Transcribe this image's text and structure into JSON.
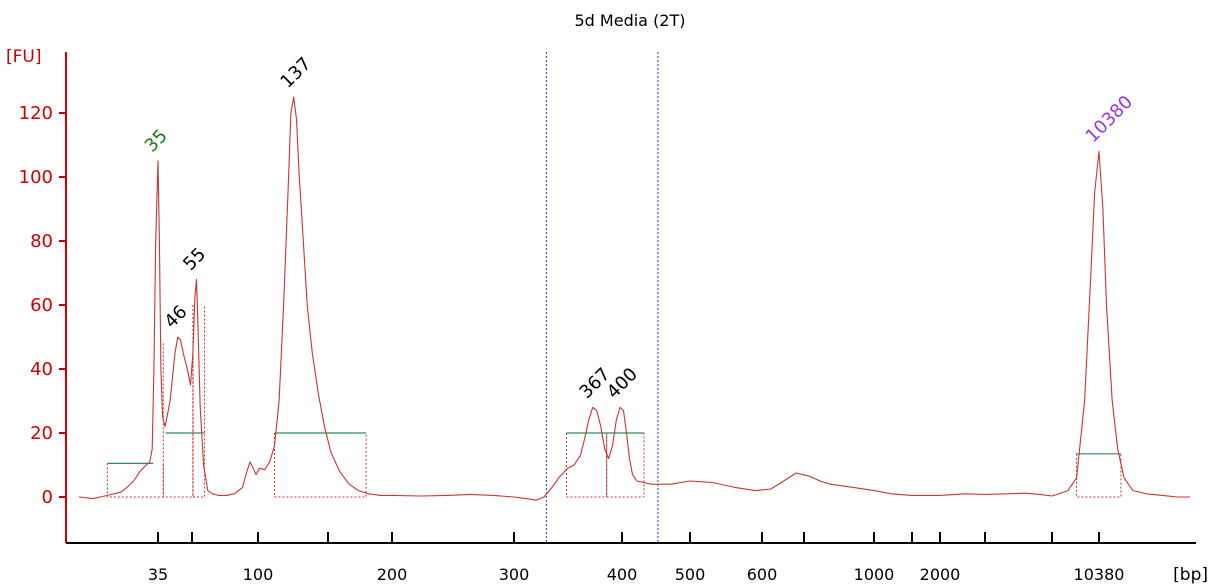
{
  "chart_data": {
    "type": "line",
    "title": "5d Media (2T)",
    "ylabel": "[FU]",
    "xlabel": "[bp]",
    "ylim": [
      -13,
      138
    ],
    "yticks": [
      0,
      20,
      40,
      60,
      80,
      100,
      120
    ],
    "xscale": "piecewise (ladder calibrated)",
    "xticks": [
      {
        "value": 35,
        "label": "35"
      },
      {
        "value": 50,
        "label": ""
      },
      {
        "value": 100,
        "label": "100"
      },
      {
        "value": 150,
        "label": ""
      },
      {
        "value": 200,
        "label": "200"
      },
      {
        "value": 300,
        "label": "300"
      },
      {
        "value": 400,
        "label": "400"
      },
      {
        "value": 500,
        "label": "500"
      },
      {
        "value": 600,
        "label": "600"
      },
      {
        "value": 700,
        "label": ""
      },
      {
        "value": 1000,
        "label": "1000"
      },
      {
        "value": 1500,
        "label": ""
      },
      {
        "value": 2000,
        "label": "2000"
      },
      {
        "value": 3000,
        "label": ""
      },
      {
        "value": 7000,
        "label": ""
      },
      {
        "value": 10380,
        "label": "10380"
      }
    ],
    "grid": false,
    "series": [
      {
        "color": "#cc3333",
        "points": [
          [
            23,
            0
          ],
          [
            25,
            -0.5
          ],
          [
            27,
            0.5
          ],
          [
            29,
            1.5
          ],
          [
            30,
            3
          ],
          [
            31,
            5
          ],
          [
            32,
            8
          ],
          [
            33,
            10
          ],
          [
            33.6,
            11
          ],
          [
            34.0,
            15
          ],
          [
            34.3,
            40
          ],
          [
            34.6,
            80
          ],
          [
            35,
            105
          ],
          [
            35.4,
            80
          ],
          [
            35.8,
            40
          ],
          [
            36.3,
            25
          ],
          [
            37,
            22
          ],
          [
            38.5,
            30
          ],
          [
            40,
            45
          ],
          [
            41.5,
            50
          ],
          [
            43,
            49
          ],
          [
            45,
            44
          ],
          [
            47,
            40
          ],
          [
            49,
            35
          ],
          [
            50.5,
            45
          ],
          [
            51.5,
            62
          ],
          [
            52.4,
            68
          ],
          [
            53.3,
            52
          ],
          [
            54.5,
            28
          ],
          [
            56.5,
            10
          ],
          [
            59,
            2
          ],
          [
            62,
            1
          ],
          [
            66,
            0.5
          ],
          [
            72,
            0.5
          ],
          [
            78,
            1
          ],
          [
            85,
            3
          ],
          [
            89,
            8
          ],
          [
            92,
            11
          ],
          [
            95,
            9
          ],
          [
            98,
            7
          ],
          [
            101,
            9
          ],
          [
            104,
            8.5
          ],
          [
            107,
            11
          ],
          [
            110,
            16
          ],
          [
            113,
            30
          ],
          [
            116,
            60
          ],
          [
            119,
            95
          ],
          [
            121,
            120
          ],
          [
            123,
            125
          ],
          [
            125,
            118
          ],
          [
            127,
            100
          ],
          [
            130,
            80
          ],
          [
            133,
            60
          ],
          [
            137,
            45
          ],
          [
            142,
            32
          ],
          [
            147,
            22
          ],
          [
            152,
            14
          ],
          [
            158,
            8
          ],
          [
            165,
            4
          ],
          [
            172,
            2
          ],
          [
            180,
            1
          ],
          [
            190,
            0.5
          ],
          [
            200,
            0.5
          ],
          [
            220,
            0.3
          ],
          [
            240,
            0.5
          ],
          [
            260,
            0.8
          ],
          [
            280,
            0.5
          ],
          [
            300,
            0
          ],
          [
            310,
            -0.5
          ],
          [
            318,
            -1
          ],
          [
            325,
            0
          ],
          [
            332,
            3
          ],
          [
            338,
            6
          ],
          [
            346,
            9
          ],
          [
            352,
            10
          ],
          [
            358,
            13
          ],
          [
            362,
            18
          ],
          [
            366,
            24
          ],
          [
            370,
            28
          ],
          [
            374,
            27
          ],
          [
            378,
            22
          ],
          [
            382,
            15
          ],
          [
            386,
            12
          ],
          [
            390,
            16
          ],
          [
            394,
            24
          ],
          [
            398,
            28
          ],
          [
            402,
            27
          ],
          [
            406,
            20
          ],
          [
            410,
            12
          ],
          [
            414,
            7
          ],
          [
            420,
            5
          ],
          [
            440,
            4
          ],
          [
            470,
            4
          ],
          [
            500,
            5
          ],
          [
            530,
            4.5
          ],
          [
            560,
            3
          ],
          [
            590,
            2
          ],
          [
            620,
            2.5
          ],
          [
            650,
            5
          ],
          [
            680,
            7.5
          ],
          [
            720,
            6.5
          ],
          [
            760,
            5
          ],
          [
            800,
            4
          ],
          [
            900,
            3
          ],
          [
            1000,
            2
          ],
          [
            1200,
            1
          ],
          [
            1500,
            0.5
          ],
          [
            2000,
            0.5
          ],
          [
            2500,
            1
          ],
          [
            3000,
            0.8
          ],
          [
            4000,
            1
          ],
          [
            5000,
            1.2
          ],
          [
            6000,
            0.8
          ],
          [
            7000,
            0.3
          ],
          [
            8000,
            2
          ],
          [
            8600,
            6
          ],
          [
            9200,
            30
          ],
          [
            9700,
            70
          ],
          [
            10000,
            95
          ],
          [
            10380,
            108
          ],
          [
            10700,
            90
          ],
          [
            11000,
            60
          ],
          [
            11500,
            30
          ],
          [
            12000,
            15
          ],
          [
            12600,
            6
          ],
          [
            13500,
            2
          ],
          [
            15000,
            1
          ],
          [
            17000,
            0.5
          ],
          [
            19000,
            0
          ],
          [
            21000,
            0
          ]
        ]
      }
    ],
    "peak_labels": [
      {
        "x": 35,
        "y": 105,
        "label": "35",
        "color": "#1a7a1a"
      },
      {
        "x": 41.5,
        "y": 50,
        "label": "46",
        "color": "#000000"
      },
      {
        "x": 52.4,
        "y": 68,
        "label": "55",
        "color": "#000000"
      },
      {
        "x": 123,
        "y": 125,
        "label": "137",
        "color": "#000000"
      },
      {
        "x": 370,
        "y": 28,
        "label": "367",
        "color": "#000000"
      },
      {
        "x": 398,
        "y": 28,
        "label": "400",
        "color": "#000000"
      },
      {
        "x": 10380,
        "y": 108,
        "label": "10380",
        "color": "#9933ee"
      }
    ],
    "region_markers": [
      327,
      450
    ],
    "baselines": [
      {
        "x": [
          27,
          34.2
        ],
        "y": 10.5
      },
      {
        "x": [
          37.2,
          57
        ],
        "y": 20
      },
      {
        "x": [
          110,
          178
        ],
        "y": 20
      },
      {
        "x": [
          345,
          430
        ],
        "y": 20
      },
      {
        "x": [
          8600,
          12300
        ],
        "y": 13.5
      }
    ],
    "integration_bounds": [
      {
        "x": [
          27,
          36.5
        ],
        "top": 10.5
      },
      {
        "x": [
          36.5,
          50.5
        ],
        "top": 48
      },
      {
        "x": [
          50.5,
          57
        ],
        "top": 60
      },
      {
        "x": [
          110,
          178
        ],
        "top": 20
      },
      {
        "x": [
          345,
          384
        ],
        "top": 20
      },
      {
        "x": [
          384,
          430
        ],
        "top": 20
      },
      {
        "x": [
          8600,
          12300
        ],
        "top": 13.5
      }
    ],
    "colors": {
      "axis": "#cc0000",
      "trace": "#cc3333",
      "marker": "#3333bb",
      "baseline": "#2e8b57"
    }
  }
}
